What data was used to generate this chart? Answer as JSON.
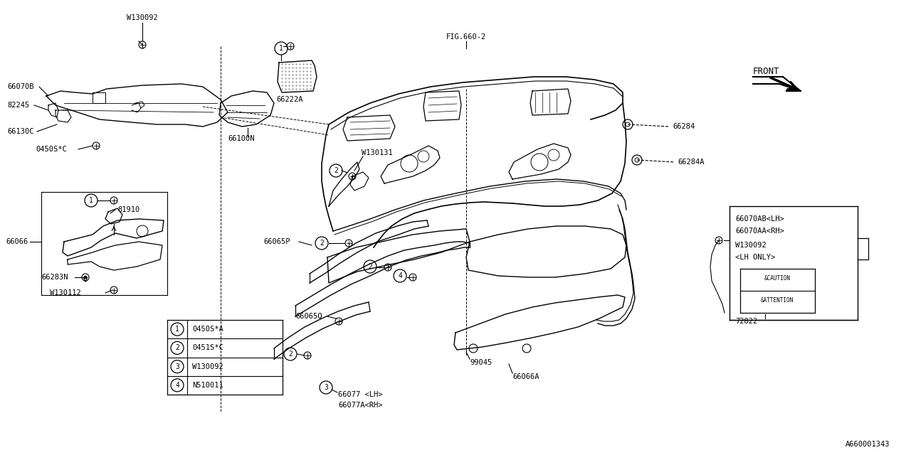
{
  "bg_color": "#ffffff",
  "line_color": "#000000",
  "text_color": "#000000",
  "fig_ref": "FIG.660-2",
  "doc_ref": "A660001343",
  "front_label": "FRONT",
  "legend": [
    {
      "num": "1",
      "code": "0450S*A"
    },
    {
      "num": "2",
      "code": "0451S*C"
    },
    {
      "num": "3",
      "code": "W130092"
    },
    {
      "num": "4",
      "code": "N510011"
    }
  ]
}
